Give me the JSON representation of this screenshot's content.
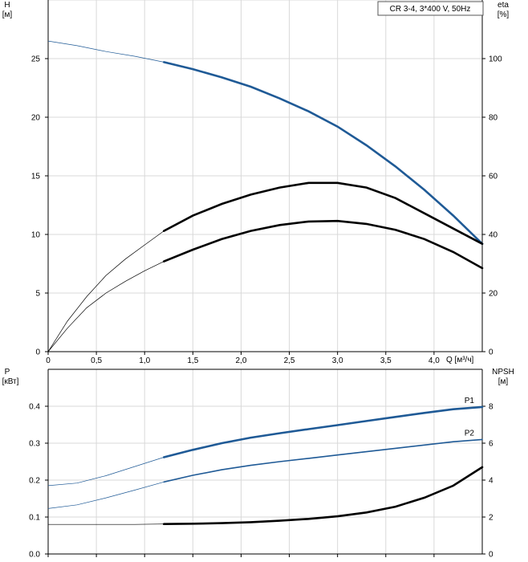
{
  "chart_data": [
    {
      "type": "line",
      "legend_box": "CR 3-4, 3*400 V, 50Hz",
      "xlabel": "Q [м³/ч]",
      "ylabel_left": "H",
      "ylabel_left_unit": "[м]",
      "ylabel_right": "eta",
      "ylabel_right_unit": "[%]",
      "xlim": [
        0,
        4.5
      ],
      "ylim_left": [
        0,
        30
      ],
      "ylim_right": [
        0,
        120
      ],
      "x_ticks": [
        0,
        0.5,
        1.0,
        1.5,
        2.0,
        2.5,
        3.0,
        3.5,
        4.0
      ],
      "x_tick_labels": [
        "0",
        "0,5",
        "1,0",
        "1,5",
        "2,0",
        "2,5",
        "3,0",
        "3,5",
        "4,0"
      ],
      "y_left_ticks": [
        0,
        5,
        10,
        15,
        20,
        25
      ],
      "y_right_ticks": [
        0,
        20,
        40,
        60,
        80,
        100
      ],
      "grid": true,
      "series": [
        {
          "axis": "left",
          "color": "#1f5a96",
          "thin_until": 1.2,
          "x": [
            0,
            0.3,
            0.6,
            0.9,
            1.2,
            1.5,
            1.8,
            2.1,
            2.4,
            2.7,
            3.0,
            3.3,
            3.6,
            3.9,
            4.2,
            4.5
          ],
          "y": [
            26.5,
            26.1,
            25.6,
            25.2,
            24.7,
            24.1,
            23.4,
            22.6,
            21.6,
            20.5,
            19.2,
            17.6,
            15.8,
            13.8,
            11.6,
            9.2
          ]
        },
        {
          "axis": "left",
          "color": "#000000",
          "thin_until": 1.2,
          "x": [
            0,
            0.2,
            0.4,
            0.6,
            0.8,
            1.0,
            1.2,
            1.5,
            1.8,
            2.1,
            2.4,
            2.7,
            3.0,
            3.3,
            3.6,
            3.9,
            4.2,
            4.5
          ],
          "y": [
            0,
            2.6,
            4.7,
            6.5,
            7.9,
            9.1,
            10.3,
            11.6,
            12.6,
            13.4,
            14.0,
            14.4,
            14.4,
            14.0,
            13.1,
            11.8,
            10.5,
            9.2
          ]
        },
        {
          "axis": "right",
          "color": "#000000",
          "thin_until": 1.2,
          "x": [
            0,
            0.2,
            0.4,
            0.6,
            0.8,
            1.0,
            1.2,
            1.5,
            1.8,
            2.1,
            2.4,
            2.7,
            3.0,
            3.3,
            3.6,
            3.9,
            4.2,
            4.5
          ],
          "y": [
            0,
            8,
            15,
            20,
            24,
            27.6,
            30.8,
            34.8,
            38.4,
            41.2,
            43.2,
            44.4,
            44.6,
            43.6,
            41.6,
            38.4,
            34.0,
            28.5
          ]
        }
      ]
    },
    {
      "type": "line",
      "xlabel": "",
      "ylabel_left": "P",
      "ylabel_left_unit": "[кВт]",
      "ylabel_right": "NPSH",
      "ylabel_right_unit": "[м]",
      "xlim": [
        0,
        4.5
      ],
      "ylim_left": [
        0,
        0.5
      ],
      "ylim_right": [
        0,
        10
      ],
      "x_ticks": [
        0,
        0.5,
        1.0,
        1.5,
        2.0,
        2.5,
        3.0,
        3.5,
        4.0
      ],
      "y_left_ticks": [
        0.0,
        0.1,
        0.2,
        0.3,
        0.4
      ],
      "y_left_tick_labels": [
        "0.0",
        "0.1",
        "0.2",
        "0.3",
        "0.4"
      ],
      "y_right_ticks": [
        0,
        2,
        4,
        6,
        8
      ],
      "grid": true,
      "series": [
        {
          "name": "P1",
          "axis": "left",
          "color": "#1f5a96",
          "thin_until": 1.2,
          "x": [
            0,
            0.3,
            0.6,
            0.9,
            1.2,
            1.5,
            1.8,
            2.1,
            2.4,
            2.7,
            3.0,
            3.3,
            3.6,
            3.9,
            4.2,
            4.5
          ],
          "y": [
            0.185,
            0.192,
            0.212,
            0.237,
            0.262,
            0.282,
            0.3,
            0.315,
            0.327,
            0.338,
            0.349,
            0.36,
            0.371,
            0.382,
            0.392,
            0.398
          ]
        },
        {
          "name": "P2",
          "axis": "left",
          "color": "#1f5a96",
          "thin_until": 1.2,
          "x": [
            0,
            0.3,
            0.6,
            0.9,
            1.2,
            1.5,
            1.8,
            2.1,
            2.4,
            2.7,
            3.0,
            3.3,
            3.6,
            3.9,
            4.2,
            4.5
          ],
          "y": [
            0.123,
            0.133,
            0.152,
            0.173,
            0.195,
            0.213,
            0.228,
            0.24,
            0.25,
            0.259,
            0.268,
            0.277,
            0.286,
            0.295,
            0.304,
            0.31
          ]
        },
        {
          "axis": "right",
          "color": "#000000",
          "thin_until": 1.2,
          "x": [
            0,
            0.3,
            0.6,
            0.9,
            1.2,
            1.5,
            1.8,
            2.1,
            2.4,
            2.7,
            3.0,
            3.3,
            3.6,
            3.9,
            4.2,
            4.5
          ],
          "y": [
            1.6,
            1.6,
            1.6,
            1.6,
            1.62,
            1.64,
            1.67,
            1.72,
            1.8,
            1.9,
            2.04,
            2.25,
            2.56,
            3.05,
            3.7,
            4.7
          ]
        }
      ]
    }
  ]
}
